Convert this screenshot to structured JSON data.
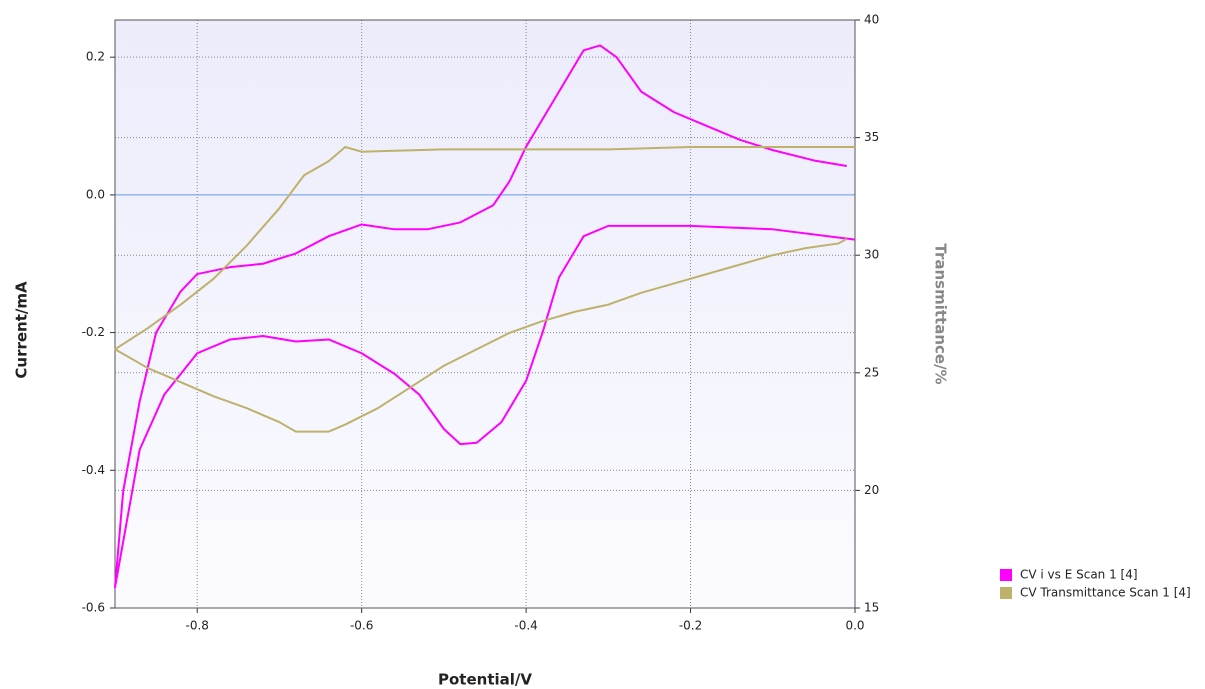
{
  "chart_data": {
    "type": "line",
    "x_label": "Potential/V",
    "y_label": "Current/mA",
    "y2_label": "Transmittance/%",
    "xlim": [
      -0.9,
      0
    ],
    "xticks": [
      -0.8,
      -0.6,
      -0.4,
      -0.2,
      {
        "value": 0,
        "label": "0.0"
      }
    ],
    "ylim": [
      -0.6,
      0.254
    ],
    "yticks": [
      0.2,
      {
        "value": 0,
        "label": "0.0"
      },
      -0.2,
      -0.4,
      -0.6
    ],
    "y2lim": [
      15,
      40
    ],
    "y2ticks": [
      15,
      20,
      25,
      30,
      35,
      40
    ],
    "grid": true,
    "legend": "bottom-right",
    "series": [
      {
        "name": "CV i vs E Scan 1 [4]",
        "color": "#ff00ff",
        "x": [
          0,
          -0.1,
          -0.2,
          -0.3,
          -0.33,
          -0.36,
          -0.38,
          -0.4,
          -0.43,
          -0.46,
          -0.48,
          -0.5,
          -0.53,
          -0.56,
          -0.6,
          -0.64,
          -0.68,
          -0.72,
          -0.76,
          -0.8,
          -0.84,
          -0.87,
          -0.9,
          -0.89,
          -0.87,
          -0.85,
          -0.82,
          -0.8,
          -0.76,
          -0.72,
          -0.68,
          -0.64,
          -0.6,
          -0.56,
          -0.52,
          -0.48,
          -0.44,
          -0.42,
          -0.4,
          -0.36,
          -0.33,
          -0.31,
          -0.29,
          -0.26,
          -0.22,
          -0.18,
          -0.14,
          -0.1,
          -0.05,
          -0.01
        ],
        "values": [
          -0.065,
          -0.05,
          -0.045,
          -0.045,
          -0.06,
          -0.12,
          -0.2,
          -0.27,
          -0.33,
          -0.36,
          -0.362,
          -0.34,
          -0.29,
          -0.26,
          -0.23,
          -0.21,
          -0.213,
          -0.205,
          -0.21,
          -0.23,
          -0.29,
          -0.37,
          -0.57,
          -0.43,
          -0.3,
          -0.2,
          -0.14,
          -0.115,
          -0.105,
          -0.1,
          -0.085,
          -0.06,
          -0.043,
          -0.05,
          -0.05,
          -0.04,
          -0.015,
          0.02,
          0.07,
          0.15,
          0.21,
          0.217,
          0.2,
          0.15,
          0.12,
          0.1,
          0.08,
          0.065,
          0.05,
          0.042
        ]
      },
      {
        "name": "CV Transmittance Scan 1 [4]",
        "color": "#bdb16b",
        "axis": "y2",
        "x": [
          0,
          -0.1,
          -0.2,
          -0.3,
          -0.4,
          -0.5,
          -0.6,
          -0.62,
          -0.64,
          -0.67,
          -0.7,
          -0.74,
          -0.78,
          -0.82,
          -0.86,
          -0.9,
          -0.86,
          -0.82,
          -0.78,
          -0.74,
          -0.7,
          -0.68,
          -0.64,
          -0.62,
          -0.58,
          -0.54,
          -0.5,
          -0.46,
          -0.42,
          -0.38,
          -0.34,
          -0.3,
          -0.26,
          -0.22,
          -0.18,
          -0.14,
          -0.1,
          -0.06,
          -0.02,
          -0.01
        ],
        "values": [
          34.6,
          34.6,
          34.6,
          34.5,
          34.5,
          34.5,
          34.4,
          34.6,
          34,
          33.4,
          32,
          30.4,
          29,
          27.9,
          26.9,
          26,
          25.2,
          24.6,
          24,
          23.5,
          22.9,
          22.5,
          22.5,
          22.8,
          23.5,
          24.4,
          25.3,
          26,
          26.7,
          27.2,
          27.6,
          27.9,
          28.4,
          28.8,
          29.2,
          29.6,
          30,
          30.3,
          30.5,
          30.7
        ]
      }
    ]
  }
}
